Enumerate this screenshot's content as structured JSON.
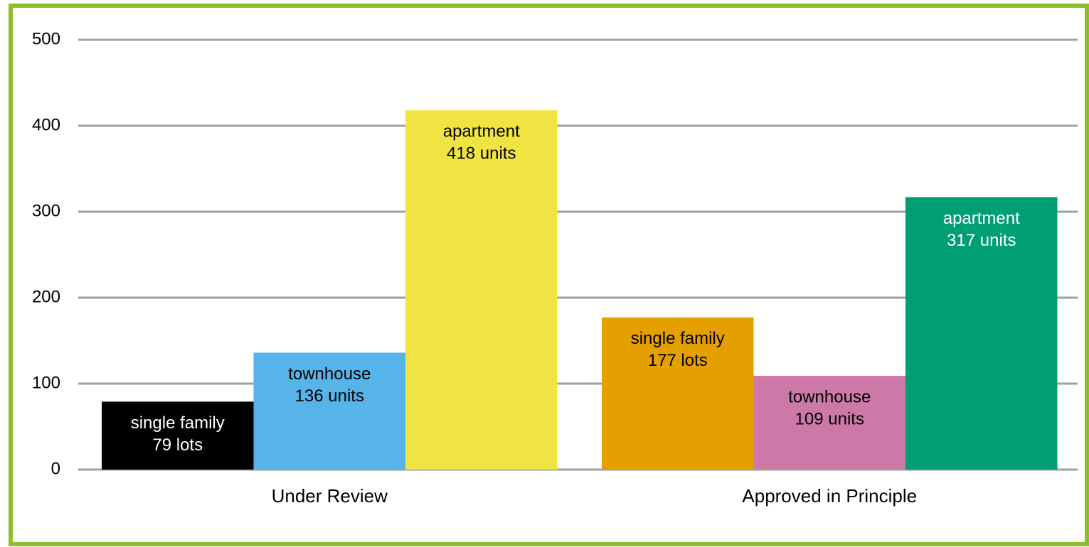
{
  "chart_data": {
    "type": "bar",
    "groups": [
      {
        "name": "Under Review",
        "bar_names": [
          "single family",
          "townhouse",
          "apartment"
        ],
        "values": [
          79,
          136,
          418
        ],
        "value_labels": [
          "79 lots",
          "136 units",
          "418 units"
        ],
        "colors": [
          "#000000",
          "#56b4e9",
          "#f0e442"
        ],
        "label_colors": [
          "#ffffff",
          "#000000",
          "#000000"
        ]
      },
      {
        "name": "Approved in Principle",
        "bar_names": [
          "single family",
          "townhouse",
          "apartment"
        ],
        "values": [
          177,
          109,
          317
        ],
        "value_labels": [
          "177 lots",
          "109 units",
          "317 units"
        ],
        "colors": [
          "#e69f00",
          "#cc79a7",
          "#009e73"
        ],
        "label_colors": [
          "#000000",
          "#000000",
          "#ffffff"
        ]
      }
    ],
    "ylim": [
      0,
      500
    ],
    "yticks": [
      0,
      100,
      200,
      300,
      400,
      500
    ],
    "grid": true,
    "frame_color": "#8dbf2a"
  }
}
